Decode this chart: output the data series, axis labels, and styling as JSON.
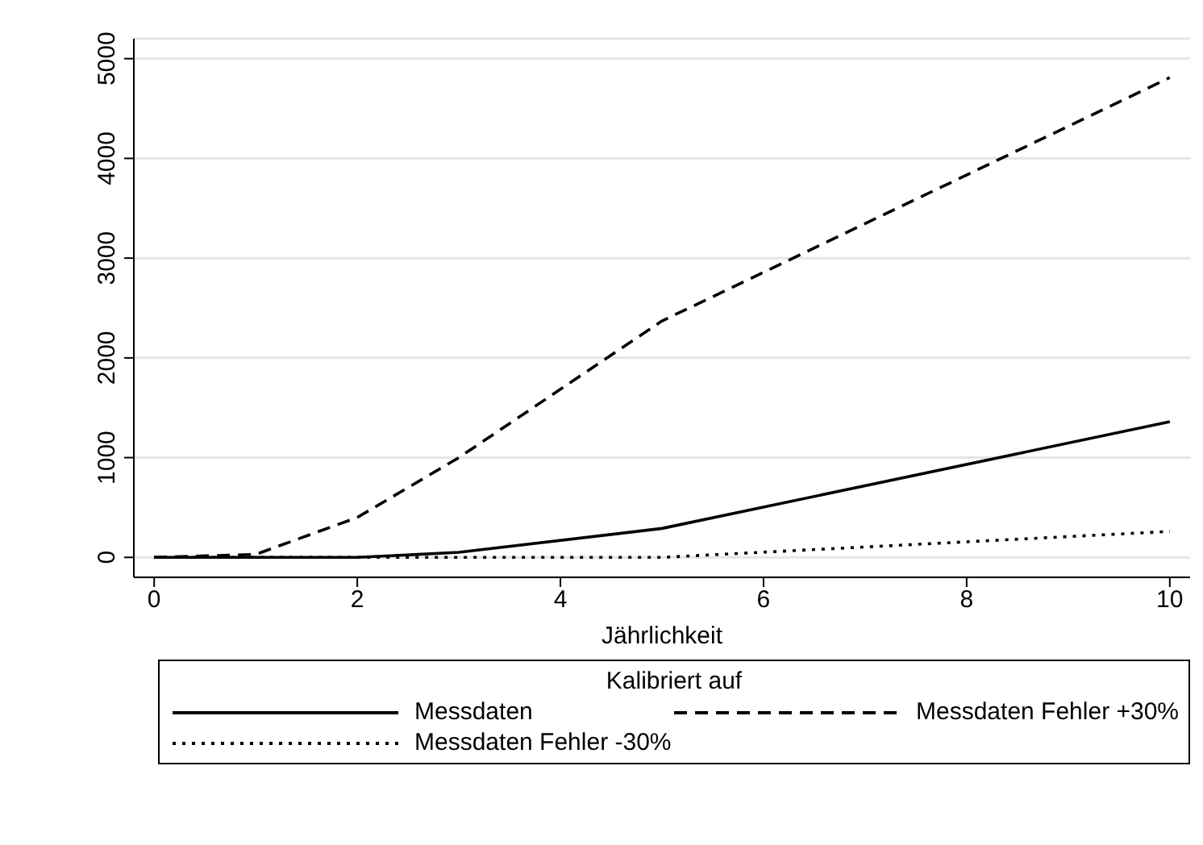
{
  "chart_data": {
    "type": "line",
    "xlabel": "Jährlichkeit",
    "legend_title": "Kalibriert auf",
    "x": [
      0,
      1,
      2,
      3,
      5,
      10
    ],
    "series": [
      {
        "name": "Messdaten",
        "color": "#000000",
        "line_style": "solid",
        "values": [
          0,
          0,
          0,
          50,
          290,
          1360
        ]
      },
      {
        "name": "Messdaten Fehler +30%",
        "color": "#000000",
        "line_style": "dashed",
        "values": [
          0,
          30,
          400,
          1000,
          2370,
          4810
        ]
      },
      {
        "name": "Messdaten Fehler -30%",
        "color": "#000000",
        "line_style": "dotted",
        "values": [
          0,
          0,
          0,
          0,
          0,
          260
        ]
      }
    ],
    "xlim": [
      -0.2,
      10.2
    ],
    "xticks": [
      0,
      2,
      4,
      6,
      8,
      10
    ],
    "ylim": [
      -200,
      5200
    ],
    "yticks": [
      0,
      1000,
      2000,
      3000,
      4000,
      5000
    ],
    "grid": "y",
    "legend": "bottom",
    "marker": "none"
  }
}
